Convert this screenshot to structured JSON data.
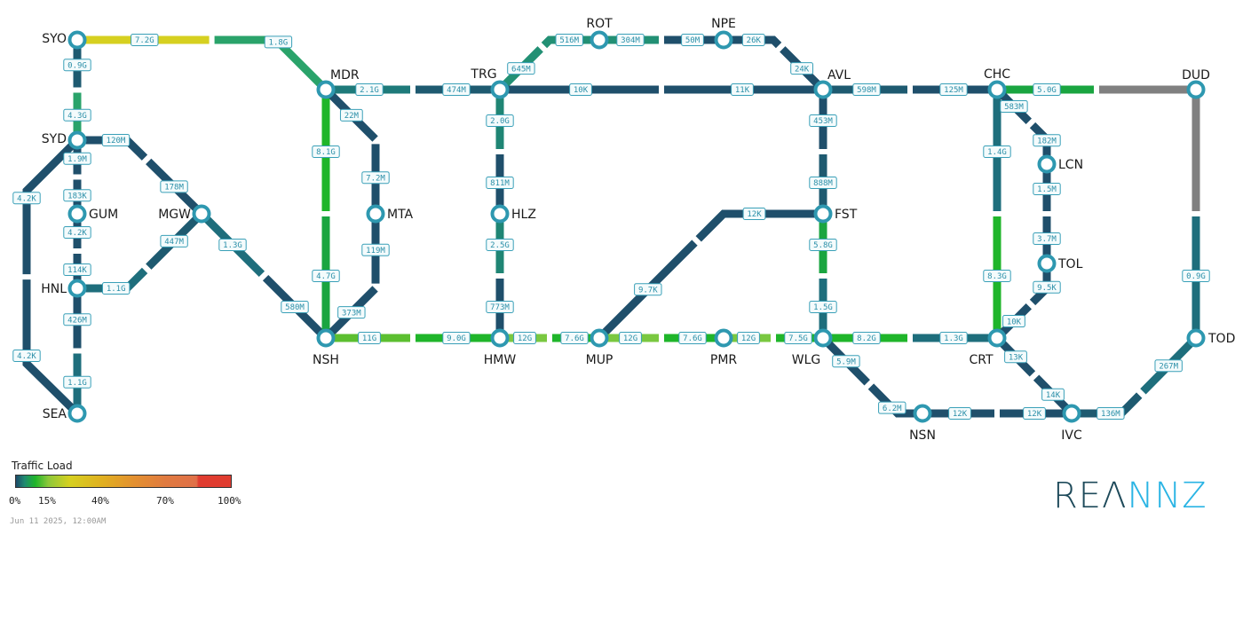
{
  "colors": {
    "node_ring": "#2e98b0",
    "label_border": "#3aa0b8",
    "label_text": "#2b8fa8"
  },
  "nodes": [
    "SYO",
    "SYD",
    "GUM",
    "HNL",
    "SEA",
    "MGW",
    "MDR",
    "MTA",
    "NSH",
    "TRG",
    "HLZ",
    "HMW",
    "ROT",
    "NPE",
    "AVL",
    "FST",
    "MUP",
    "PMR",
    "WLG",
    "CHC",
    "DUD",
    "LCN",
    "TOL",
    "CRT",
    "NSN",
    "IVC",
    "TOD"
  ],
  "links": [
    {
      "from": "SYO",
      "to": "MDR",
      "a": {
        "label": "7.2G",
        "color": "#d6d020"
      },
      "b": {
        "label": "1.8G",
        "color": "#2aa36a"
      }
    },
    {
      "from": "SYO",
      "to": "SYD",
      "a": {
        "label": "0.9G",
        "color": "#1e5a70"
      },
      "b": {
        "label": "4.3G",
        "color": "#2aa36a"
      }
    },
    {
      "from": "SYD",
      "to": "GUM",
      "a": {
        "label": "1.9M",
        "color": "#1f4f6b"
      },
      "b": {
        "label": "183K",
        "color": "#1f4f6b"
      }
    },
    {
      "from": "GUM",
      "to": "HNL",
      "a": {
        "label": "4.2K",
        "color": "#1f4f6b"
      },
      "b": {
        "label": "114K",
        "color": "#1f4f6b"
      }
    },
    {
      "from": "HNL",
      "to": "SEA",
      "a": {
        "label": "426M",
        "color": "#1f4f6b"
      },
      "b": {
        "label": "1.1G",
        "color": "#1e6e7c"
      }
    },
    {
      "from": "SYD",
      "to": "SEA",
      "a": {
        "label": "4.2K",
        "color": "#1f4f6b"
      },
      "b": {
        "label": "4.2K",
        "color": "#1f4f6b"
      }
    },
    {
      "from": "SYD",
      "to": "MGW",
      "a": {
        "label": "120M",
        "color": "#1f4f6b"
      },
      "b": {
        "label": "178M",
        "color": "#1f4f6b"
      }
    },
    {
      "from": "HNL",
      "to": "MGW",
      "a": {
        "label": "1.1G",
        "color": "#1e6e7c"
      },
      "b": {
        "label": "447M",
        "color": "#1e5a70"
      }
    },
    {
      "from": "MGW",
      "to": "NSH",
      "a": {
        "label": "1.3G",
        "color": "#1e6e7c"
      },
      "b": {
        "label": "580M",
        "color": "#1f4f6b"
      }
    },
    {
      "from": "MDR",
      "to": "NSH",
      "a": {
        "label": "8.1G",
        "color": "#1fb52a"
      },
      "b": {
        "label": "4.7G",
        "color": "#1aa540"
      }
    },
    {
      "from": "MDR",
      "to": "MTA",
      "a": {
        "label": "22M",
        "color": "#1f4f6b"
      },
      "b": {
        "label": "7.2M",
        "color": "#1f4f6b"
      }
    },
    {
      "from": "MTA",
      "to": "NSH",
      "a": {
        "label": "119M",
        "color": "#1f4f6b"
      },
      "b": {
        "label": "373M",
        "color": "#1f4f6b"
      }
    },
    {
      "from": "MDR",
      "to": "TRG",
      "a": {
        "label": "2.1G",
        "color": "#1e7a7a"
      },
      "b": {
        "label": "474M",
        "color": "#1e5a70"
      }
    },
    {
      "from": "NSH",
      "to": "HMW",
      "a": {
        "label": "11G",
        "color": "#5cbf30"
      },
      "b": {
        "label": "9.0G",
        "color": "#1fb52a"
      }
    },
    {
      "from": "TRG",
      "to": "HLZ",
      "a": {
        "label": "2.0G",
        "color": "#1f8574"
      },
      "b": {
        "label": "811M",
        "color": "#1f4f6b"
      }
    },
    {
      "from": "HLZ",
      "to": "HMW",
      "a": {
        "label": "2.5G",
        "color": "#1f8574"
      },
      "b": {
        "label": "773M",
        "color": "#1f4f6b"
      }
    },
    {
      "from": "TRG",
      "to": "ROT",
      "a": {
        "label": "645M",
        "color": "#229074"
      },
      "b": {
        "label": "516M",
        "color": "#229074"
      }
    },
    {
      "from": "ROT",
      "to": "NPE",
      "a": {
        "label": "304M",
        "color": "#229074"
      },
      "b": {
        "label": "50M",
        "color": "#1f4f6b"
      }
    },
    {
      "from": "NPE",
      "to": "AVL",
      "a": {
        "label": "26K",
        "color": "#1f4f6b"
      },
      "b": {
        "label": "24K",
        "color": "#1f4f6b"
      }
    },
    {
      "from": "TRG",
      "to": "AVL",
      "a": {
        "label": "10K",
        "color": "#1f4f6b"
      },
      "b": {
        "label": "11K",
        "color": "#1f4f6b"
      }
    },
    {
      "from": "AVL",
      "to": "FST",
      "a": {
        "label": "453M",
        "color": "#1f4f6b"
      },
      "b": {
        "label": "888M",
        "color": "#1e5a70"
      }
    },
    {
      "from": "FST",
      "to": "MUP",
      "a": {
        "label": "12K",
        "color": "#1f4f6b"
      },
      "b": {
        "label": "9.7K",
        "color": "#1f4f6b"
      }
    },
    {
      "from": "HMW",
      "to": "MUP",
      "a": {
        "label": "12G",
        "color": "#7ac840"
      },
      "b": {
        "label": "7.6G",
        "color": "#1fb52a"
      }
    },
    {
      "from": "MUP",
      "to": "PMR",
      "a": {
        "label": "12G",
        "color": "#7ac840"
      },
      "b": {
        "label": "7.6G",
        "color": "#1fb52a"
      }
    },
    {
      "from": "PMR",
      "to": "WLG",
      "a": {
        "label": "12G",
        "color": "#7ac840"
      },
      "b": {
        "label": "7.5G",
        "color": "#1fb52a"
      }
    },
    {
      "from": "FST",
      "to": "WLG",
      "a": {
        "label": "5.8G",
        "color": "#1aa540"
      },
      "b": {
        "label": "1.5G",
        "color": "#1e6e7c"
      }
    },
    {
      "from": "AVL",
      "to": "CHC",
      "a": {
        "label": "598M",
        "color": "#1e5a70"
      },
      "b": {
        "label": "125M",
        "color": "#1f4f6b"
      }
    },
    {
      "from": "CHC",
      "to": "DUD",
      "a": {
        "label": "5.0G",
        "color": "#1aa540"
      },
      "b": {
        "label": "",
        "color": "#808080"
      }
    },
    {
      "from": "CHC",
      "to": "CRT",
      "a": {
        "label": "1.4G",
        "color": "#1e6e7c"
      },
      "b": {
        "label": "8.3G",
        "color": "#1fb52a"
      }
    },
    {
      "from": "CHC",
      "to": "LCN",
      "a": {
        "label": "583M",
        "color": "#1f4f6b"
      },
      "b": {
        "label": "182M",
        "color": "#1f4f6b"
      }
    },
    {
      "from": "LCN",
      "to": "TOL",
      "a": {
        "label": "1.5M",
        "color": "#1f4f6b"
      },
      "b": {
        "label": "3.7M",
        "color": "#1f4f6b"
      }
    },
    {
      "from": "TOL",
      "to": "CRT",
      "a": {
        "label": "9.5K",
        "color": "#1f4f6b"
      },
      "b": {
        "label": "10K",
        "color": "#1f4f6b"
      }
    },
    {
      "from": "WLG",
      "to": "CRT",
      "a": {
        "label": "8.2G",
        "color": "#1fb52a"
      },
      "b": {
        "label": "1.3G",
        "color": "#1e6e7c"
      }
    },
    {
      "from": "WLG",
      "to": "NSN",
      "a": {
        "label": "5.9M",
        "color": "#1f4f6b"
      },
      "b": {
        "label": "6.2M",
        "color": "#1f4f6b"
      }
    },
    {
      "from": "NSN",
      "to": "IVC",
      "a": {
        "label": "12K",
        "color": "#1f4f6b"
      },
      "b": {
        "label": "12K",
        "color": "#1f4f6b"
      }
    },
    {
      "from": "CRT",
      "to": "IVC",
      "a": {
        "label": "13K",
        "color": "#1f4f6b"
      },
      "b": {
        "label": "14K",
        "color": "#1f4f6b"
      }
    },
    {
      "from": "IVC",
      "to": "TOD",
      "a": {
        "label": "136M",
        "color": "#1e5a70"
      },
      "b": {
        "label": "267M",
        "color": "#1e6e7c"
      }
    },
    {
      "from": "DUD",
      "to": "TOD",
      "a": {
        "label": "",
        "color": "#808080"
      },
      "b": {
        "label": "0.9G",
        "color": "#1e6e7c"
      }
    }
  ],
  "legend": {
    "title": "Traffic Load",
    "ticks": [
      "0%",
      "15%",
      "40%",
      "70%",
      "100%"
    ],
    "timestamp": "Jun 11 2025, 12:00AM"
  },
  "logo": {
    "part1": "REΛ",
    "part2": "NNZ"
  }
}
